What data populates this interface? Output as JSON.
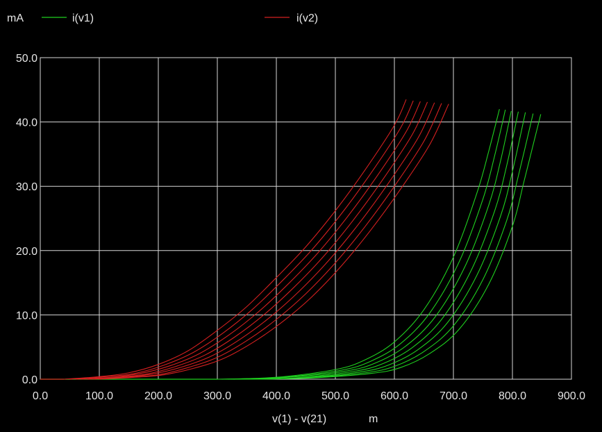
{
  "chart_data": {
    "type": "line",
    "title": "",
    "xlabel": "v(1) - v(21)",
    "xunit": "m",
    "ylabel": "mA",
    "xlim": [
      0,
      900
    ],
    "ylim": [
      0,
      50
    ],
    "xticks": [
      "0.0",
      "100.0",
      "200.0",
      "300.0",
      "400.0",
      "500.0",
      "600.0",
      "700.0",
      "800.0",
      "900.0"
    ],
    "yticks": [
      "0.0",
      "10.0",
      "20.0",
      "30.0",
      "40.0",
      "50.0"
    ],
    "grid": true,
    "legend_position": "top",
    "series": [
      {
        "name": "i(v1)",
        "color": "#1fd01f",
        "curves": [
          {
            "x": [
              300,
              400,
              500,
              550,
              600,
              650,
              700,
              740,
              760,
              778
            ],
            "y": [
              0.0,
              0.3,
              1.5,
              3.0,
              5.8,
              10.8,
              19.0,
              29.0,
              35.5,
              42.0
            ]
          },
          {
            "x": [
              310,
              410,
              510,
              560,
              610,
              660,
              710,
              750,
              770,
              788
            ],
            "y": [
              0.0,
              0.3,
              1.4,
              2.8,
              5.5,
              10.3,
              18.3,
              28.0,
              34.8,
              41.9
            ]
          },
          {
            "x": [
              320,
              420,
              520,
              570,
              620,
              670,
              720,
              760,
              780,
              798
            ],
            "y": [
              0.0,
              0.3,
              1.3,
              2.6,
              5.2,
              9.8,
              17.6,
              27.1,
              34.0,
              41.7
            ]
          },
          {
            "x": [
              330,
              430,
              530,
              580,
              630,
              680,
              730,
              770,
              790,
              810
            ],
            "y": [
              0.0,
              0.2,
              1.2,
              2.4,
              4.9,
              9.3,
              16.9,
              26.2,
              33.1,
              41.6
            ]
          },
          {
            "x": [
              340,
              440,
              540,
              590,
              640,
              690,
              740,
              780,
              800,
              822
            ],
            "y": [
              0.0,
              0.2,
              1.1,
              2.2,
              4.6,
              8.8,
              16.2,
              25.4,
              32.3,
              41.5
            ]
          },
          {
            "x": [
              350,
              450,
              550,
              600,
              650,
              700,
              750,
              790,
              810,
              835
            ],
            "y": [
              0.0,
              0.2,
              1.0,
              2.0,
              4.3,
              8.3,
              15.5,
              24.6,
              31.6,
              41.3
            ]
          },
          {
            "x": [
              360,
              460,
              560,
              610,
              660,
              710,
              760,
              800,
              820,
              848
            ],
            "y": [
              0.0,
              0.2,
              0.9,
              1.8,
              4.0,
              7.8,
              14.8,
              23.8,
              30.9,
              41.2
            ]
          }
        ]
      },
      {
        "name": "i(v2)",
        "color": "#d42020",
        "curves": [
          {
            "x": [
              40,
              100,
              150,
              200,
              250,
              300,
              350,
              400,
              450,
              500,
              550,
              600,
              620
            ],
            "y": [
              0.0,
              0.4,
              1.0,
              2.3,
              4.4,
              7.6,
              11.3,
              15.8,
              20.6,
              26.2,
              32.5,
              39.5,
              43.5
            ]
          },
          {
            "x": [
              50,
              110,
              160,
              210,
              260,
              310,
              360,
              410,
              460,
              510,
              560,
              610,
              632
            ],
            "y": [
              0.0,
              0.4,
              0.9,
              2.2,
              4.2,
              7.2,
              10.9,
              15.3,
              20.1,
              25.7,
              32.0,
              39.0,
              43.3
            ]
          },
          {
            "x": [
              60,
              120,
              170,
              220,
              270,
              320,
              370,
              420,
              470,
              520,
              570,
              620,
              644
            ],
            "y": [
              0.0,
              0.3,
              0.9,
              2.1,
              4.0,
              6.9,
              10.5,
              14.8,
              19.6,
              25.2,
              31.5,
              38.5,
              43.2
            ]
          },
          {
            "x": [
              70,
              130,
              180,
              230,
              280,
              330,
              380,
              430,
              480,
              530,
              580,
              630,
              656
            ],
            "y": [
              0.0,
              0.3,
              0.8,
              2.0,
              3.8,
              6.6,
              10.1,
              14.3,
              19.1,
              24.7,
              31.0,
              38.0,
              43.1
            ]
          },
          {
            "x": [
              80,
              140,
              190,
              240,
              290,
              340,
              390,
              440,
              490,
              540,
              590,
              640,
              668
            ],
            "y": [
              0.0,
              0.3,
              0.8,
              1.9,
              3.6,
              6.3,
              9.7,
              13.8,
              18.6,
              24.2,
              30.5,
              37.5,
              43.0
            ]
          },
          {
            "x": [
              90,
              150,
              200,
              250,
              300,
              350,
              400,
              450,
              500,
              550,
              600,
              650,
              680
            ],
            "y": [
              0.0,
              0.3,
              0.7,
              1.8,
              3.4,
              6.0,
              9.3,
              13.3,
              18.1,
              23.7,
              30.0,
              37.0,
              42.9
            ]
          },
          {
            "x": [
              100,
              160,
              210,
              260,
              310,
              360,
              410,
              460,
              510,
              560,
              610,
              660,
              692
            ],
            "y": [
              0.0,
              0.3,
              0.7,
              1.7,
              3.2,
              5.7,
              8.9,
              12.8,
              17.6,
              23.2,
              29.5,
              36.5,
              42.8
            ]
          }
        ]
      }
    ]
  }
}
